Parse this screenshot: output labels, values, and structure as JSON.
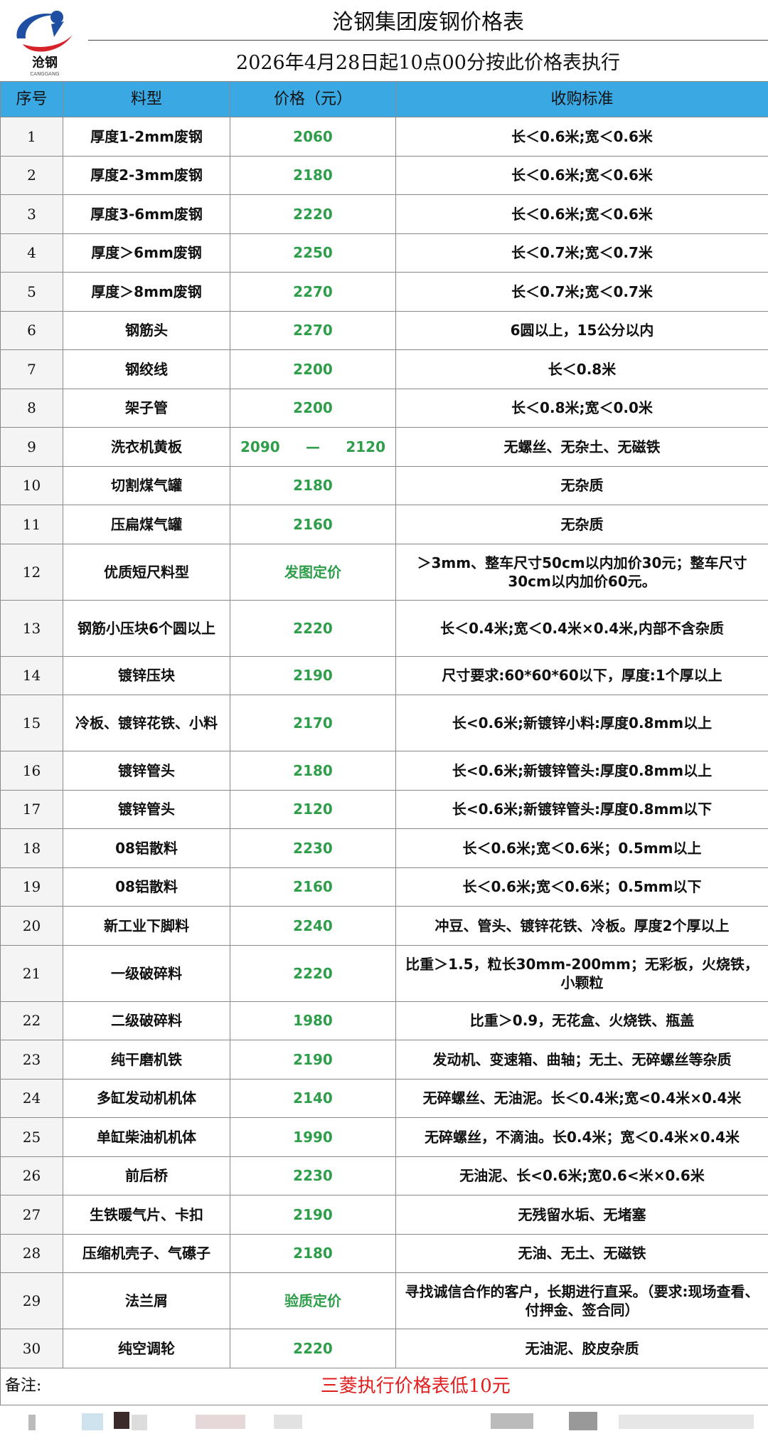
{
  "header": {
    "logo_text": "沧钢",
    "logo_sub": "CANGGANG",
    "title": "沧钢集团废钢价格表",
    "subtitle": "2026年4月28日起10点00分按此价格表执行"
  },
  "table": {
    "columns": [
      "序号",
      "料型",
      "价格（元）",
      "收购标准"
    ],
    "rows": [
      [
        1,
        "厚度1-2mm废钢",
        2060,
        "长＜0.6米;宽＜0.6米"
      ],
      [
        2,
        "厚度2-3mm废钢",
        2180,
        "长＜0.6米;宽＜0.6米"
      ],
      [
        3,
        "厚度3-6mm废钢",
        2220,
        "长＜0.6米;宽＜0.6米"
      ],
      [
        4,
        "厚度＞6mm废钢",
        2250,
        "长＜0.7米;宽＜0.7米"
      ],
      [
        5,
        "厚度＞8mm废钢",
        2270,
        "长＜0.7米;宽＜0.7米"
      ],
      [
        6,
        "钢筋头",
        2270,
        "6圆以上，15公分以内"
      ],
      [
        7,
        "钢绞线",
        2200,
        "长＜0.8米"
      ],
      [
        8,
        "架子管",
        2200,
        "长＜0.8米;宽＜0.0米"
      ],
      [
        9,
        "洗衣机黄板",
        {
          "low": 2090,
          "sep": "—",
          "high": 2120
        },
        "无螺丝、无杂土、无磁铁"
      ],
      [
        10,
        "切割煤气罐",
        2180,
        "无杂质"
      ],
      [
        11,
        "压扁煤气罐",
        2160,
        "无杂质"
      ],
      [
        12,
        "优质短尺料型",
        "发图定价",
        "＞3mm、整车尺寸50cm以内加价30元；整车尺寸30cm以内加价60元。"
      ],
      [
        13,
        "钢筋小压块6个圆以上",
        2220,
        "长＜0.4米;宽＜0.4米×0.4米,内部不含杂质"
      ],
      [
        14,
        "镀锌压块",
        2190,
        "尺寸要求:60*60*60以下，厚度:1个厚以上"
      ],
      [
        15,
        "冷板、镀锌花铁、小料",
        2170,
        "长<0.6米;新镀锌小料:厚度0.8mm以上"
      ],
      [
        16,
        "镀锌管头",
        2180,
        "长<0.6米;新镀锌管头:厚度0.8mm以上"
      ],
      [
        17,
        "镀锌管头",
        2120,
        "长<0.6米;新镀锌管头:厚度0.8mm以下"
      ],
      [
        18,
        "08铝散料",
        2230,
        "长＜0.6米;宽＜0.6米；0.5mm以上"
      ],
      [
        19,
        "08铝散料",
        2160,
        "长＜0.6米;宽＜0.6米；0.5mm以下"
      ],
      [
        20,
        "新工业下脚料",
        2240,
        "冲豆、管头、镀锌花铁、冷板。厚度2个厚以上"
      ],
      [
        21,
        "一级破碎料",
        2220,
        "比重＞1.5，粒长30mm-200mm；无彩板，火烧铁，小颗粒"
      ],
      [
        22,
        "二级破碎料",
        1980,
        "比重＞0.9，无花盒、火烧铁、瓶盖"
      ],
      [
        23,
        "纯干磨机铁",
        2190,
        "发动机、变速箱、曲轴；无土、无碎螺丝等杂质"
      ],
      [
        24,
        "多缸发动机机体",
        2140,
        "无碎螺丝、无油泥。长＜0.4米;宽<0.4米×0.4米"
      ],
      [
        25,
        "单缸柴油机机体",
        1990,
        "无碎螺丝，不滴油。长0.4米；宽＜0.4米×0.4米"
      ],
      [
        26,
        "前后桥",
        2230,
        "无油泥、长<0.6米;宽0.6<米×0.6米"
      ],
      [
        27,
        "生铁暖气片、卡扣",
        2190,
        "无残留水垢、无堵塞"
      ],
      [
        28,
        "压缩机壳子、气礤子",
        2180,
        "无油、无土、无磁铁"
      ],
      [
        29,
        "法兰屑",
        "验质定价",
        "寻找诚信合作的客户，长期进行直采。（要求:现场查看、付押金、签合同）"
      ],
      [
        30,
        "纯空调轮",
        2220,
        "无油泥、胶皮杂质"
      ]
    ],
    "remark_label": "备注:",
    "remark": "三菱执行价格表低10元"
  }
}
